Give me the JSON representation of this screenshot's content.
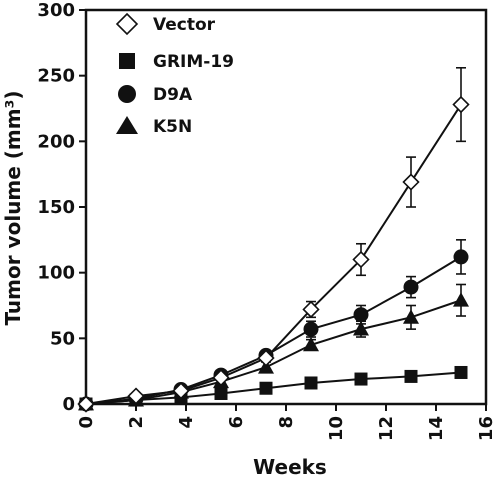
{
  "chart_data": {
    "type": "line",
    "xlabel": "Weeks",
    "ylabel": "Tumor volume (mm³)",
    "xlim": [
      0,
      16
    ],
    "ylim": [
      0,
      300
    ],
    "x_ticks": [
      0,
      2,
      4,
      6,
      8,
      10,
      12,
      14,
      16
    ],
    "y_ticks": [
      0,
      50,
      100,
      150,
      200,
      250,
      300
    ],
    "legend_position": "top-left",
    "series": [
      {
        "name": "Vector",
        "marker": "diamond-open",
        "x": [
          0,
          2,
          3.8,
          5.4,
          7.2,
          9,
          11,
          13,
          15
        ],
        "y": [
          0,
          6,
          10,
          20,
          35,
          72,
          110,
          169,
          228
        ],
        "err": [
          0,
          0,
          0,
          0,
          3,
          6,
          12,
          19,
          28
        ]
      },
      {
        "name": "GRIM-19",
        "marker": "square-filled",
        "x": [
          0,
          2,
          3.8,
          5.4,
          7.2,
          9,
          11,
          13,
          15
        ],
        "y": [
          0,
          3,
          5,
          8,
          12,
          16,
          19,
          21,
          24
        ],
        "err": [
          0,
          0,
          0,
          0,
          0,
          0,
          0,
          0,
          0
        ]
      },
      {
        "name": "D9A",
        "marker": "circle-filled",
        "x": [
          0,
          2,
          3.8,
          5.4,
          7.2,
          9,
          11,
          13,
          15
        ],
        "y": [
          0,
          4,
          11,
          22,
          37,
          57,
          68,
          89,
          112
        ],
        "err": [
          0,
          0,
          0,
          0,
          3,
          6,
          7,
          8,
          13
        ]
      },
      {
        "name": "K5N",
        "marker": "triangle-filled",
        "x": [
          0,
          2,
          3.8,
          5.4,
          7.2,
          9,
          11,
          13,
          15
        ],
        "y": [
          0,
          3,
          9,
          17,
          28,
          45,
          57,
          66,
          79
        ],
        "err": [
          0,
          0,
          0,
          0,
          0,
          4,
          6,
          9,
          12
        ]
      }
    ]
  }
}
